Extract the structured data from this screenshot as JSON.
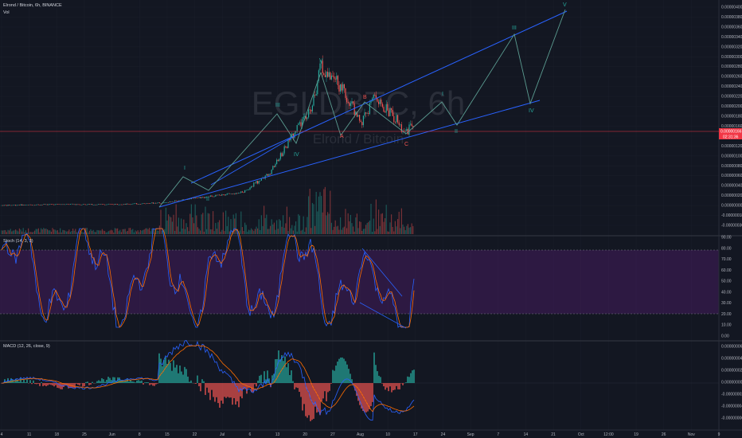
{
  "header": {
    "symbol_line": "Elrond / Bitcoin, 6h, BINANCE",
    "vol_label": "Vol",
    "stoch_label": "Stoch (14, 3, 3)",
    "macd_label": "MACD (12, 26, close, 9)"
  },
  "watermark": {
    "ticker": "EGLDBTC, 6h",
    "name": "Elrond / Bitcoin"
  },
  "price_axis": {
    "ticks": [
      "0.00000400",
      "0.00000380",
      "0.00000360",
      "0.00000340",
      "0.00000320",
      "0.00000300",
      "0.00000280",
      "0.00000260",
      "0.00000240",
      "0.00000220",
      "0.00000200",
      "0.00000180",
      "0.00000160",
      "0.00000140",
      "0.00000120",
      "0.00000100",
      "0.00000080",
      "0.00000060",
      "0.00000040",
      "0.00000020",
      "0.00000000",
      "-0.00000018",
      "-0.00000036"
    ],
    "current_price": "0.00000166",
    "countdown": "02:31:36",
    "current_color": "#f23645"
  },
  "stoch_axis": {
    "ticks": [
      "90.00",
      "80.00",
      "70.00",
      "60.00",
      "50.00",
      "40.00",
      "30.00",
      "20.00",
      "10.00",
      "0.00"
    ]
  },
  "macd_axis": {
    "ticks": [
      "0.00000006",
      "0.00000004",
      "0.00000002",
      "0.00000000",
      "-0.00000002",
      "-0.00000004",
      "-0.00000006"
    ]
  },
  "time_axis": {
    "ticks": [
      "4",
      "11",
      "18",
      "25",
      "Jun",
      "8",
      "15",
      "22",
      "Jul",
      "6",
      "13",
      "20",
      "27",
      "Aug",
      "10",
      "17",
      "24",
      "Sep",
      "7",
      "14",
      "21",
      "Oct",
      "12:00",
      "19",
      "26",
      "Nov",
      "9"
    ]
  },
  "waves": {
    "impulse_1": [
      "I",
      "II",
      "III",
      "IV",
      "V"
    ],
    "correction": [
      "A",
      "B",
      "C"
    ],
    "projection": [
      "I",
      "II",
      "III",
      "IV",
      "V"
    ]
  },
  "chart_data": {
    "type": "candlestick",
    "title": "Elrond / Bitcoin, 6h, BINANCE",
    "series": [
      {
        "name": "price",
        "x": [
          "May 4",
          "May 18",
          "Jun 1",
          "Jun 10",
          "Jun 20",
          "Jun 26",
          "Jul 1",
          "Jul 8",
          "Jul 15",
          "Jul 20",
          "Jul 24",
          "Jul 27",
          "Aug 1",
          "Aug 8",
          "Aug 12",
          "Aug 18",
          "Aug 21",
          "Aug 24",
          "Aug 29",
          "Sep 7",
          "Sep 17",
          "Oct 1"
        ],
        "values": [
          4e-08,
          6e-08,
          6e-08,
          7e-08,
          1e-07,
          1.8e-07,
          2.3e-07,
          3e-07,
          7e-07,
          1.5e-06,
          2e-06,
          2.82e-06,
          2.4e-06,
          1.7e-06,
          2.2e-06,
          1.8e-06,
          1.5e-06,
          1.66e-06,
          2.3e-06,
          1.8e-06,
          3.5e-06,
          2.1e-06
        ]
      }
    ],
    "ylim": [
      -3.6e-07,
      4e-06
    ],
    "colors": {
      "up": "#26a69a",
      "down": "#ef5350",
      "trendline": "#2962ff",
      "projection": "#26a69a",
      "stoch_band": "#7b1fa2",
      "stoch_k": "#2962ff",
      "stoch_d": "#ff6d00"
    }
  }
}
